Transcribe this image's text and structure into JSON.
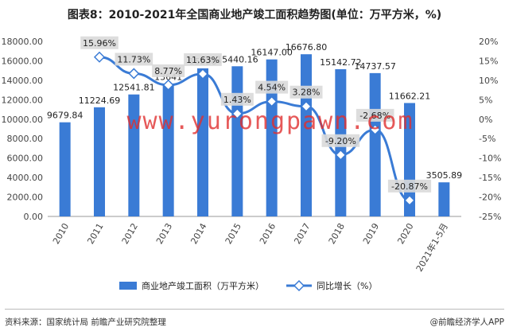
{
  "title": "图表8：2010-2021年全国商业地产竣工面积趋势图(单位：万平方米，%)",
  "chart_data": {
    "type": "bar+line",
    "categories": [
      "2010",
      "2011",
      "2012",
      "2013",
      "2014",
      "2015",
      "2016",
      "2017",
      "2018",
      "2019",
      "2020",
      "2021年1-5月"
    ],
    "series": [
      {
        "name": "商业地产竣工面积（万平方米）",
        "type": "bar",
        "axis": "left",
        "values": [
          9679.84,
          11224.69,
          12541.81,
          13641,
          15228,
          15440.16,
          16147.0,
          16676.8,
          15142.72,
          14737.57,
          11662.21,
          3505.89
        ],
        "labels": [
          "9679.84",
          "11224.69",
          "12541.81",
          "13641",
          "15228",
          "15440.16",
          "16147.00",
          "16676.80",
          "15142.72",
          "14737.57",
          "11662.21",
          "3505.89"
        ]
      },
      {
        "name": "同比增长（%）",
        "type": "line",
        "axis": "right",
        "values": [
          null,
          15.96,
          11.73,
          8.77,
          11.63,
          1.43,
          4.54,
          3.28,
          -9.2,
          -2.68,
          -20.87,
          null
        ],
        "labels": [
          "",
          "15.96%",
          "11.73%",
          "8.77%",
          "11.63%",
          "1.43%",
          "4.54%",
          "3.28%",
          "-9.20%",
          "-2.68%",
          "-20.87%",
          ""
        ]
      }
    ],
    "ylim_left": [
      0,
      18000
    ],
    "yticks_left": [
      "0.00",
      "2000.00",
      "4000.00",
      "6000.00",
      "8000.00",
      "10000.00",
      "12000.00",
      "14000.00",
      "16000.00",
      "18000.00"
    ],
    "ylim_right": [
      -25,
      20
    ],
    "yticks_right": [
      "-25%",
      "-20%",
      "-15%",
      "-10%",
      "-5%",
      "0%",
      "5%",
      "10%",
      "15%",
      "20%"
    ],
    "grid": false,
    "legend_position": "bottom-center"
  },
  "colors": {
    "bar": "#3a7bd5",
    "line": "#3a7bd5",
    "label_box": "#d9d9d9"
  },
  "watermark": "www.yurongpawn.com",
  "footer": {
    "source": "资料来源：国家统计局 前瞻产业研究院整理",
    "brand": "@前瞻经济学人APP"
  }
}
